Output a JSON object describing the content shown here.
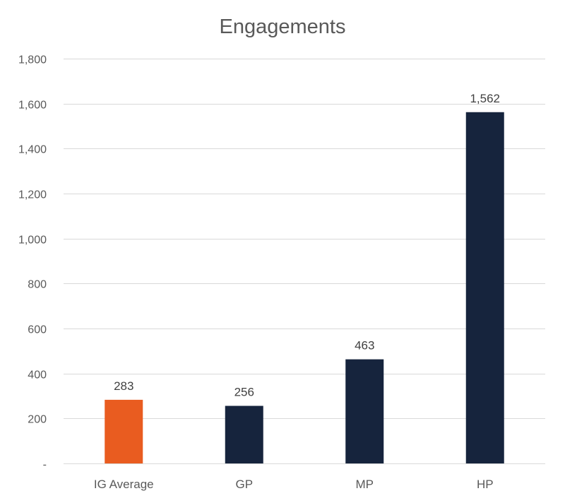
{
  "chart_data": {
    "type": "bar",
    "title": "Engagements",
    "xlabel": "",
    "ylabel": "",
    "categories": [
      "IG Average",
      "GP",
      "MP",
      "HP"
    ],
    "values": [
      283,
      256,
      463,
      1562
    ],
    "data_labels": [
      "283",
      "256",
      "463",
      "1,562"
    ],
    "bar_colors": [
      "#e95c20",
      "#16243d",
      "#16243d",
      "#16243d"
    ],
    "ylim": [
      0,
      1800
    ],
    "yticks": [
      0,
      200,
      400,
      600,
      800,
      1000,
      1200,
      1400,
      1600,
      1800
    ],
    "ytick_labels": [
      "-",
      "200",
      "400",
      "600",
      "800",
      "1,000",
      "1,200",
      "1,400",
      "1,600",
      "1,800"
    ],
    "grid": true,
    "legend": "none"
  }
}
